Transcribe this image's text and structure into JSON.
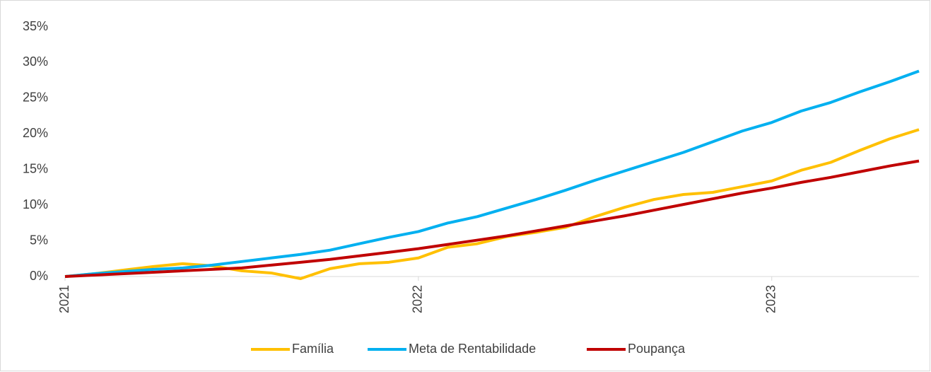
{
  "chart_data": {
    "type": "line",
    "categories": [
      "2021",
      null,
      null,
      null,
      null,
      null,
      null,
      null,
      null,
      null,
      null,
      null,
      "2022",
      null,
      null,
      null,
      null,
      null,
      null,
      null,
      null,
      null,
      null,
      null,
      "2023",
      null,
      null,
      null,
      null,
      null
    ],
    "series": [
      {
        "name": "Família",
        "color": "#FFC000",
        "values": [
          0,
          0.4,
          0.9,
          1.4,
          1.8,
          1.5,
          0.8,
          0.5,
          -0.3,
          1.1,
          1.8,
          2.0,
          2.6,
          4.1,
          4.6,
          5.6,
          6.2,
          6.9,
          8.4,
          9.7,
          10.8,
          11.5,
          11.8,
          12.6,
          13.4,
          14.9,
          16.0,
          17.7,
          19.3,
          20.6
        ]
      },
      {
        "name": "Meta de Rentabilidade",
        "color": "#00B0F0",
        "values": [
          0,
          0.4,
          0.7,
          1.0,
          1.2,
          1.6,
          2.1,
          2.6,
          3.1,
          3.7,
          4.6,
          5.5,
          6.3,
          7.5,
          8.4,
          9.6,
          10.8,
          12.1,
          13.5,
          14.8,
          16.1,
          17.4,
          18.9,
          20.4,
          21.6,
          23.2,
          24.4,
          25.9,
          27.3,
          28.8
        ]
      },
      {
        "name": "Poupança",
        "color": "#C00000",
        "values": [
          0,
          0.2,
          0.4,
          0.6,
          0.8,
          1.0,
          1.2,
          1.6,
          2.0,
          2.4,
          2.9,
          3.4,
          3.9,
          4.5,
          5.1,
          5.7,
          6.4,
          7.1,
          7.8,
          8.5,
          9.3,
          10.1,
          10.9,
          11.7,
          12.4,
          13.2,
          13.9,
          14.7,
          15.5,
          16.2
        ]
      }
    ],
    "ylim": [
      0,
      35
    ],
    "yticks": [
      {
        "value": 0,
        "label": "0%"
      },
      {
        "value": 5,
        "label": "5%"
      },
      {
        "value": 10,
        "label": "10%"
      },
      {
        "value": 15,
        "label": "15%"
      },
      {
        "value": 20,
        "label": "20%"
      },
      {
        "value": 25,
        "label": "25%"
      },
      {
        "value": 30,
        "label": "30%"
      },
      {
        "value": 35,
        "label": "35%"
      }
    ],
    "grid": false,
    "legend": "bottom"
  }
}
